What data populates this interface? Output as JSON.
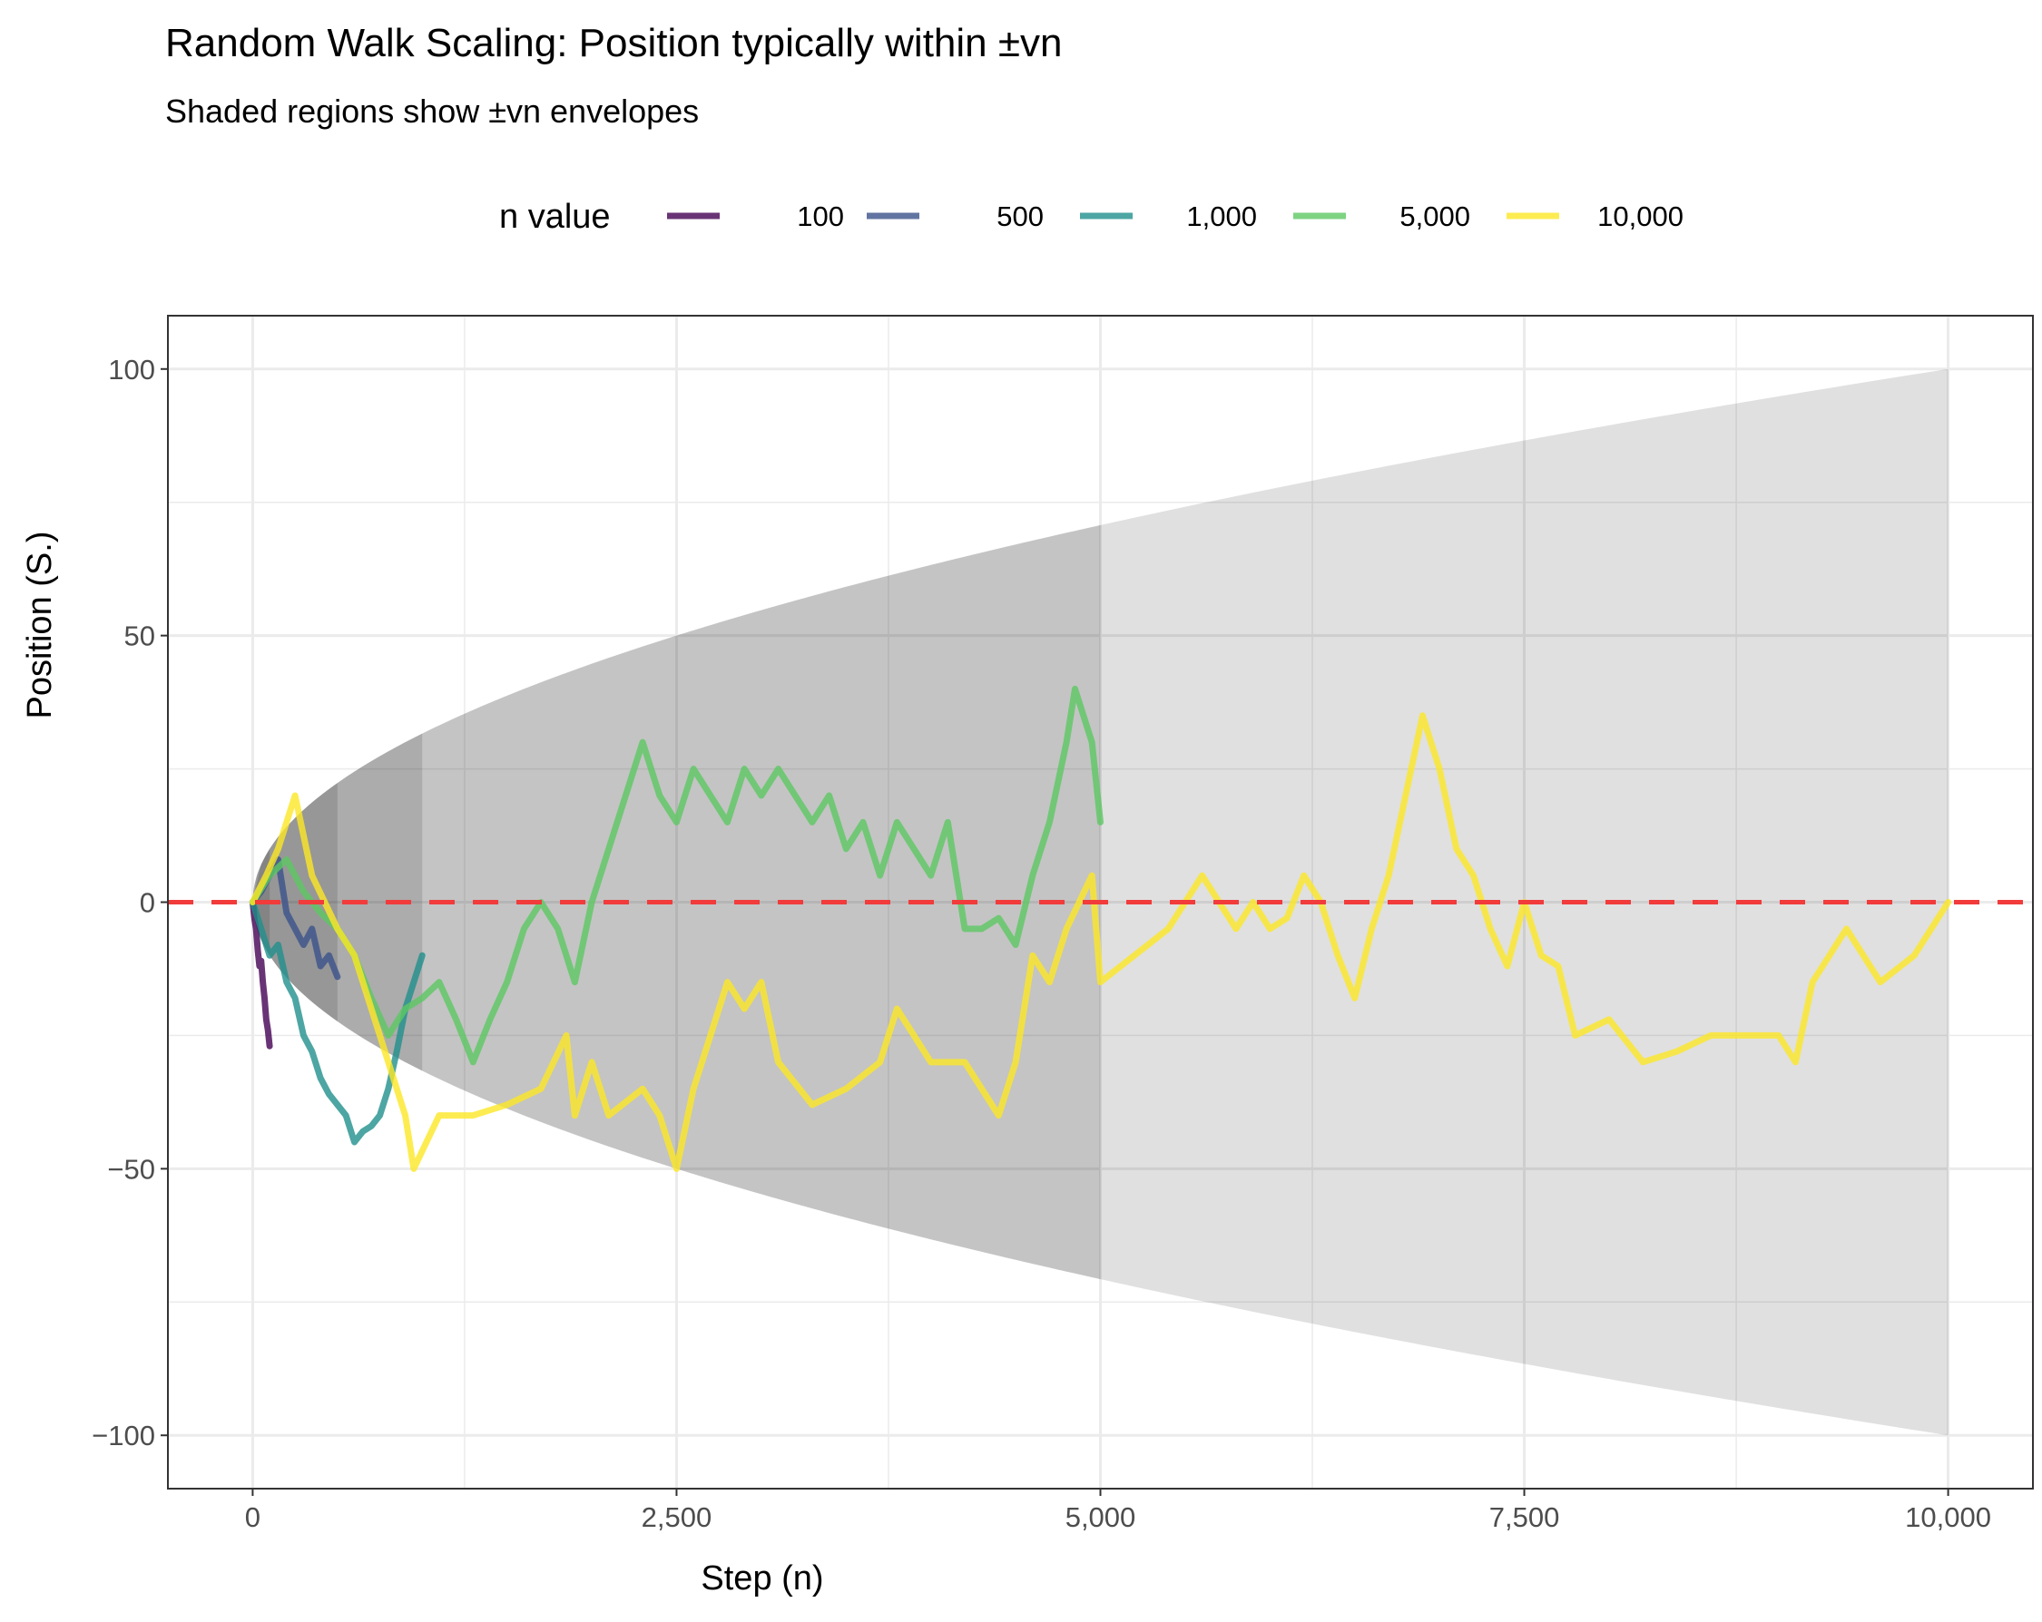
{
  "chart_data": {
    "type": "line",
    "title": "Random Walk Scaling: Position typically within ±vn",
    "subtitle": "Shaded regions show ±vn envelopes",
    "xlabel": "Step (n)",
    "ylabel": "Position (S.)",
    "xlim": [
      -500,
      10500
    ],
    "ylim": [
      -110,
      110
    ],
    "x_ticks": [
      0,
      2500,
      5000,
      7500,
      10000
    ],
    "x_tick_labels": [
      "0",
      "2,500",
      "5,000",
      "7,500",
      "10,000"
    ],
    "y_ticks": [
      -100,
      -50,
      0,
      50,
      100
    ],
    "y_tick_labels": [
      "−100",
      "−50",
      "0",
      "50",
      "100"
    ],
    "grid": true,
    "legend": {
      "title": "n value",
      "placement": "top"
    },
    "reference_line": {
      "y": 0,
      "style": "dashed",
      "color": "#F23B3B"
    },
    "envelope": "±sqrt(step) up to each n",
    "series": [
      {
        "name": "100",
        "n": 100,
        "color": "#440154",
        "points": [
          [
            0,
            0
          ],
          [
            10,
            -3
          ],
          [
            20,
            -5
          ],
          [
            30,
            -9
          ],
          [
            40,
            -12
          ],
          [
            50,
            -11
          ],
          [
            60,
            -15
          ],
          [
            70,
            -18
          ],
          [
            80,
            -22
          ],
          [
            90,
            -24
          ],
          [
            100,
            -27
          ]
        ]
      },
      {
        "name": "500",
        "n": 500,
        "color": "#3B528B",
        "points": [
          [
            0,
            0
          ],
          [
            50,
            2
          ],
          [
            100,
            5
          ],
          [
            150,
            8
          ],
          [
            200,
            -2
          ],
          [
            250,
            -5
          ],
          [
            300,
            -8
          ],
          [
            350,
            -5
          ],
          [
            400,
            -12
          ],
          [
            450,
            -10
          ],
          [
            500,
            -14
          ]
        ]
      },
      {
        "name": "1,000",
        "n": 1000,
        "color": "#21908C",
        "points": [
          [
            0,
            0
          ],
          [
            50,
            -5
          ],
          [
            100,
            -10
          ],
          [
            150,
            -8
          ],
          [
            200,
            -15
          ],
          [
            250,
            -18
          ],
          [
            300,
            -25
          ],
          [
            350,
            -28
          ],
          [
            400,
            -33
          ],
          [
            450,
            -36
          ],
          [
            500,
            -38
          ],
          [
            550,
            -40
          ],
          [
            600,
            -45
          ],
          [
            650,
            -43
          ],
          [
            700,
            -42
          ],
          [
            750,
            -40
          ],
          [
            800,
            -35
          ],
          [
            850,
            -28
          ],
          [
            900,
            -20
          ],
          [
            950,
            -15
          ],
          [
            1000,
            -10
          ]
        ]
      },
      {
        "name": "5,000",
        "n": 5000,
        "color": "#5DC863",
        "points": [
          [
            0,
            0
          ],
          [
            100,
            5
          ],
          [
            200,
            8
          ],
          [
            300,
            2
          ],
          [
            400,
            -2
          ],
          [
            500,
            -5
          ],
          [
            600,
            -10
          ],
          [
            700,
            -18
          ],
          [
            800,
            -25
          ],
          [
            900,
            -20
          ],
          [
            1000,
            -18
          ],
          [
            1100,
            -15
          ],
          [
            1200,
            -22
          ],
          [
            1300,
            -30
          ],
          [
            1400,
            -22
          ],
          [
            1500,
            -15
          ],
          [
            1600,
            -5
          ],
          [
            1700,
            0
          ],
          [
            1800,
            -5
          ],
          [
            1900,
            -15
          ],
          [
            2000,
            0
          ],
          [
            2100,
            10
          ],
          [
            2200,
            20
          ],
          [
            2300,
            30
          ],
          [
            2400,
            20
          ],
          [
            2500,
            15
          ],
          [
            2600,
            25
          ],
          [
            2700,
            20
          ],
          [
            2800,
            15
          ],
          [
            2900,
            25
          ],
          [
            3000,
            20
          ],
          [
            3100,
            25
          ],
          [
            3200,
            20
          ],
          [
            3300,
            15
          ],
          [
            3400,
            20
          ],
          [
            3500,
            10
          ],
          [
            3600,
            15
          ],
          [
            3700,
            5
          ],
          [
            3800,
            15
          ],
          [
            3900,
            10
          ],
          [
            4000,
            5
          ],
          [
            4100,
            15
          ],
          [
            4200,
            -5
          ],
          [
            4300,
            -5
          ],
          [
            4400,
            -3
          ],
          [
            4500,
            -8
          ],
          [
            4600,
            5
          ],
          [
            4700,
            15
          ],
          [
            4800,
            30
          ],
          [
            4850,
            40
          ],
          [
            4900,
            35
          ],
          [
            4950,
            30
          ],
          [
            5000,
            15
          ]
        ]
      },
      {
        "name": "10,000",
        "n": 10000,
        "color": "#FDE725",
        "points": [
          [
            0,
            0
          ],
          [
            80,
            5
          ],
          [
            150,
            10
          ],
          [
            250,
            20
          ],
          [
            350,
            5
          ],
          [
            500,
            -5
          ],
          [
            600,
            -10
          ],
          [
            700,
            -20
          ],
          [
            800,
            -30
          ],
          [
            900,
            -40
          ],
          [
            950,
            -50
          ],
          [
            1100,
            -40
          ],
          [
            1300,
            -40
          ],
          [
            1500,
            -38
          ],
          [
            1700,
            -35
          ],
          [
            1850,
            -25
          ],
          [
            1900,
            -40
          ],
          [
            2000,
            -30
          ],
          [
            2100,
            -40
          ],
          [
            2300,
            -35
          ],
          [
            2400,
            -40
          ],
          [
            2500,
            -50
          ],
          [
            2600,
            -35
          ],
          [
            2700,
            -25
          ],
          [
            2800,
            -15
          ],
          [
            2900,
            -20
          ],
          [
            3000,
            -15
          ],
          [
            3100,
            -30
          ],
          [
            3300,
            -38
          ],
          [
            3500,
            -35
          ],
          [
            3700,
            -30
          ],
          [
            3800,
            -20
          ],
          [
            3900,
            -25
          ],
          [
            4000,
            -30
          ],
          [
            4200,
            -30
          ],
          [
            4300,
            -35
          ],
          [
            4400,
            -40
          ],
          [
            4500,
            -30
          ],
          [
            4600,
            -10
          ],
          [
            4700,
            -15
          ],
          [
            4800,
            -5
          ],
          [
            4950,
            5
          ],
          [
            5000,
            -15
          ],
          [
            5200,
            -10
          ],
          [
            5400,
            -5
          ],
          [
            5600,
            5
          ],
          [
            5700,
            0
          ],
          [
            5800,
            -5
          ],
          [
            5900,
            0
          ],
          [
            6000,
            -5
          ],
          [
            6100,
            -3
          ],
          [
            6200,
            5
          ],
          [
            6300,
            0
          ],
          [
            6400,
            -10
          ],
          [
            6500,
            -18
          ],
          [
            6600,
            -5
          ],
          [
            6700,
            5
          ],
          [
            6800,
            20
          ],
          [
            6900,
            35
          ],
          [
            7000,
            25
          ],
          [
            7100,
            10
          ],
          [
            7200,
            5
          ],
          [
            7300,
            -5
          ],
          [
            7400,
            -12
          ],
          [
            7500,
            0
          ],
          [
            7600,
            -10
          ],
          [
            7700,
            -12
          ],
          [
            7800,
            -25
          ],
          [
            8000,
            -22
          ],
          [
            8200,
            -30
          ],
          [
            8400,
            -28
          ],
          [
            8600,
            -25
          ],
          [
            8800,
            -25
          ],
          [
            9000,
            -25
          ],
          [
            9100,
            -30
          ],
          [
            9200,
            -15
          ],
          [
            9400,
            -5
          ],
          [
            9600,
            -15
          ],
          [
            9800,
            -10
          ],
          [
            10000,
            0
          ]
        ]
      }
    ]
  }
}
